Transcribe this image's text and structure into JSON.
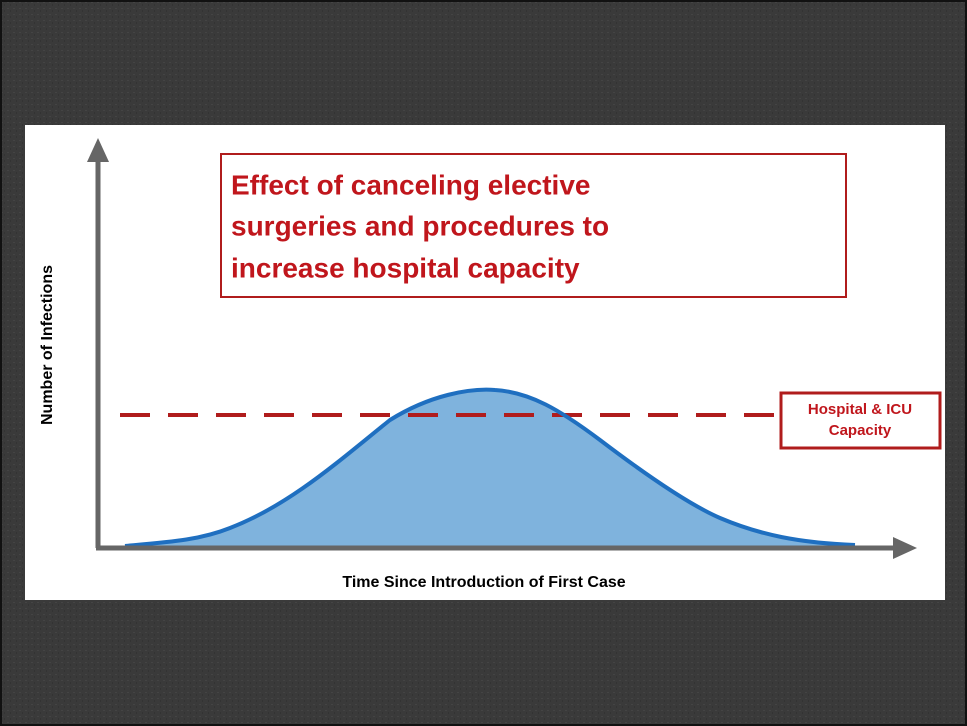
{
  "title": {
    "lines": [
      "Effect of canceling elective",
      "surgeries and procedures to",
      "increase hospital capacity"
    ]
  },
  "y_axis_label": "Number of Infections",
  "x_axis_label": "Time Since Introduction of First Case",
  "capacity_label": {
    "lines": [
      "Hospital & ICU",
      "Capacity"
    ]
  }
}
